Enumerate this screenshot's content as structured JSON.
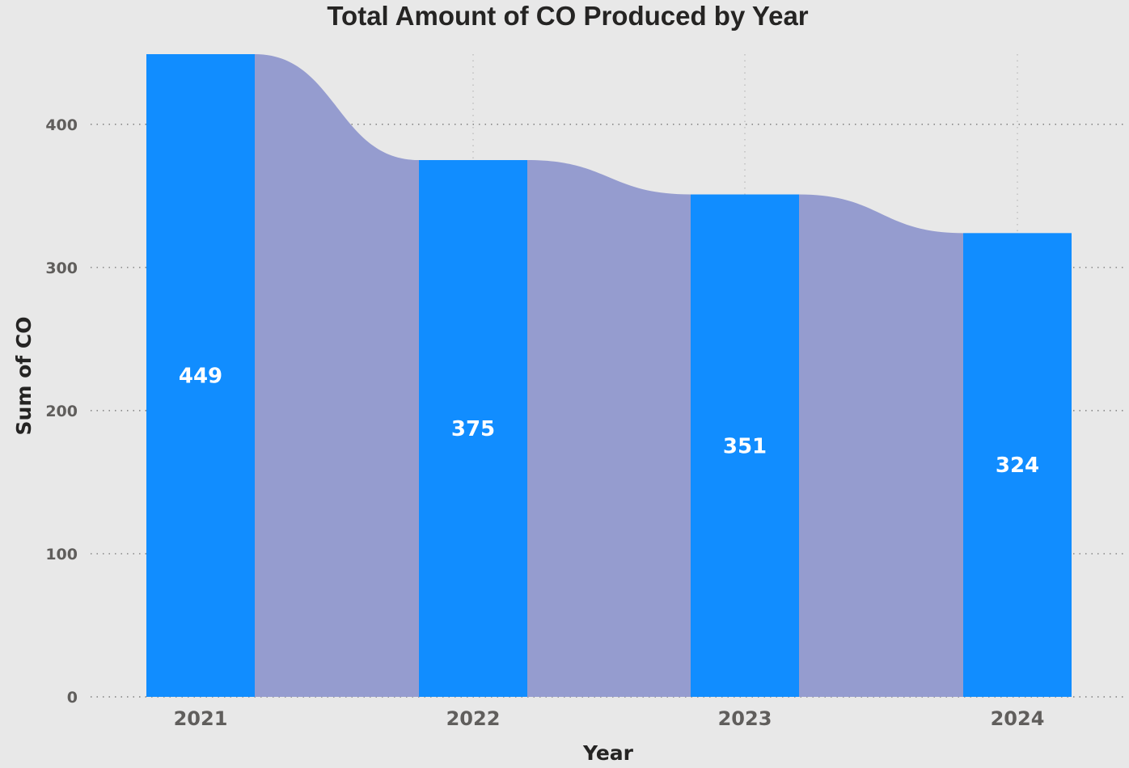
{
  "chart_data": {
    "type": "bar",
    "title": "Total Amount of CO Produced by Year",
    "xlabel": "Year",
    "ylabel": "Sum of CO",
    "categories": [
      "2021",
      "2022",
      "2023",
      "2024"
    ],
    "values": [
      449,
      375,
      351,
      324
    ],
    "data_labels": [
      "449",
      "375",
      "351",
      "324"
    ],
    "yticks": [
      0,
      100,
      200,
      300,
      400
    ],
    "ytick_labels": [
      "0",
      "100",
      "200",
      "300",
      "400"
    ],
    "ylim": [
      0,
      449
    ],
    "grid": true,
    "ribbon": true,
    "colors": {
      "bar": "#118DFF",
      "ribbon": "#959CCF",
      "grid": "#7F7F7F",
      "background": "#E8E8E8"
    }
  }
}
